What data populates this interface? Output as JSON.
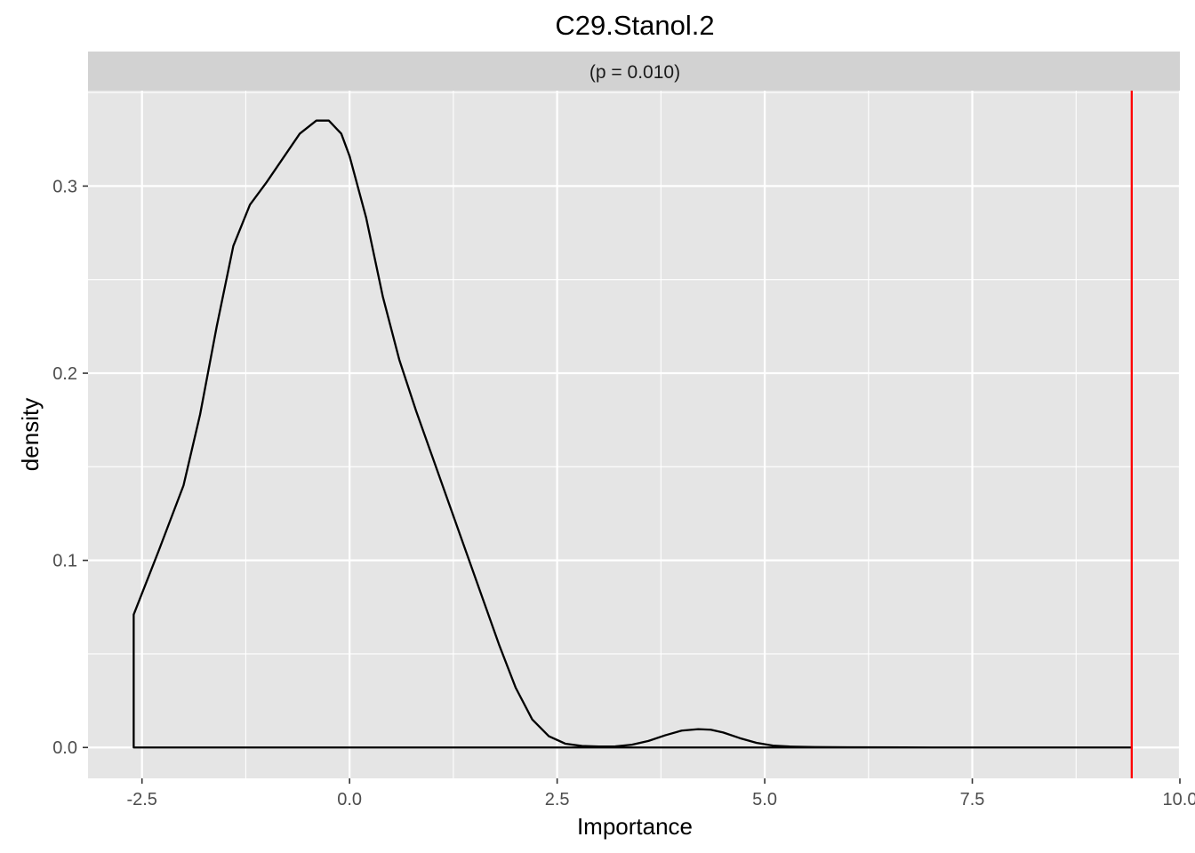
{
  "chart_data": {
    "type": "area",
    "title": "C29.Stanol.2",
    "facet_label": "(p = 0.010)",
    "xlabel": "Importance",
    "ylabel": "density",
    "xlim": [
      -3.15,
      10.0
    ],
    "ylim": [
      -0.0165,
      0.351
    ],
    "x_ticks": [
      -2.5,
      0.0,
      2.5,
      5.0,
      7.5,
      10.0
    ],
    "x_tick_labels": [
      "-2.5",
      "0.0",
      "2.5",
      "5.0",
      "7.5",
      "10.0"
    ],
    "y_ticks": [
      0.0,
      0.1,
      0.2,
      0.3
    ],
    "y_tick_labels": [
      "0.0",
      "0.1",
      "0.2",
      "0.3"
    ],
    "grid": true,
    "density_curve": {
      "x": [
        -2.6,
        -2.3,
        -2.0,
        -1.8,
        -1.6,
        -1.4,
        -1.2,
        -1.0,
        -0.8,
        -0.6,
        -0.4,
        -0.25,
        -0.1,
        0.0,
        0.2,
        0.4,
        0.6,
        0.8,
        1.0,
        1.2,
        1.4,
        1.6,
        1.8,
        2.0,
        2.2,
        2.4,
        2.6,
        2.8,
        3.0,
        3.2,
        3.4,
        3.6,
        3.8,
        4.0,
        4.2,
        4.35,
        4.5,
        4.7,
        4.9,
        5.1,
        5.3,
        5.6,
        6.0,
        7.0,
        8.0,
        9.0,
        9.42
      ],
      "y": [
        0.071,
        0.105,
        0.14,
        0.178,
        0.225,
        0.268,
        0.29,
        0.302,
        0.315,
        0.328,
        0.335,
        0.335,
        0.328,
        0.316,
        0.283,
        0.241,
        0.207,
        0.18,
        0.155,
        0.13,
        0.105,
        0.08,
        0.055,
        0.032,
        0.015,
        0.006,
        0.002,
        0.0008,
        0.0005,
        0.0006,
        0.0015,
        0.0035,
        0.0065,
        0.009,
        0.0098,
        0.0095,
        0.008,
        0.005,
        0.0025,
        0.001,
        0.0005,
        0.0002,
        0.0001,
        0.0,
        0.0,
        0.0,
        0.0
      ]
    },
    "vline": {
      "x": 9.42,
      "color": "#ff0000"
    },
    "colors": {
      "panel_background": "#e5e5e5",
      "strip_background": "#d2d2d2",
      "grid": "#ffffff",
      "curve": "#000000"
    }
  }
}
